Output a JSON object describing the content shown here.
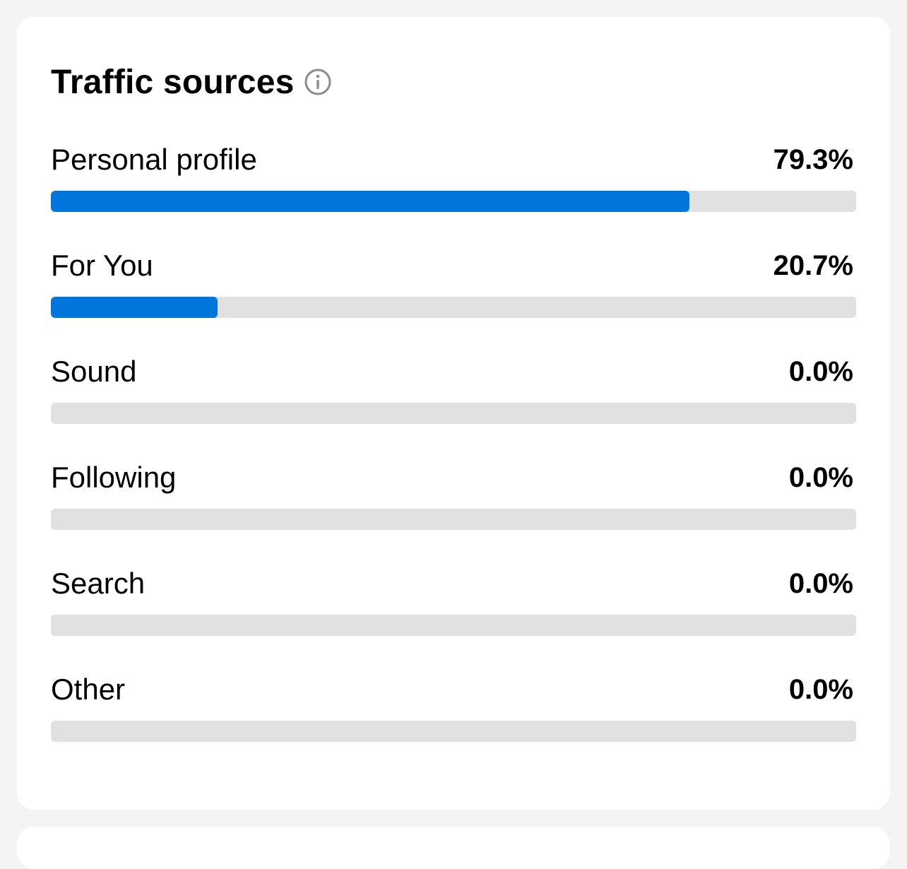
{
  "header": {
    "title": "Traffic sources",
    "info_icon": "info-icon"
  },
  "colors": {
    "bar_fill": "#0075db",
    "bar_track": "#e1e1e1",
    "card_bg": "#ffffff",
    "page_bg": "#f4f4f4"
  },
  "sources": [
    {
      "id": "personal-profile",
      "label": "Personal profile",
      "value_text": "79.3%",
      "percent": 79.3
    },
    {
      "id": "for-you",
      "label": "For You",
      "value_text": "20.7%",
      "percent": 20.7
    },
    {
      "id": "sound",
      "label": "Sound",
      "value_text": "0.0%",
      "percent": 0.0
    },
    {
      "id": "following",
      "label": "Following",
      "value_text": "0.0%",
      "percent": 0.0
    },
    {
      "id": "search",
      "label": "Search",
      "value_text": "0.0%",
      "percent": 0.0
    },
    {
      "id": "other",
      "label": "Other",
      "value_text": "0.0%",
      "percent": 0.0
    }
  ]
}
